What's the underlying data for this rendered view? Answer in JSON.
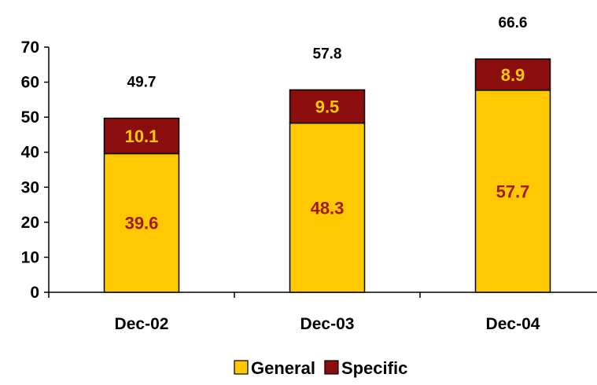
{
  "chart_data": {
    "type": "bar",
    "stacked": true,
    "categories": [
      "Dec-02",
      "Dec-03",
      "Dec-04"
    ],
    "series": [
      {
        "name": "General",
        "values": [
          39.6,
          48.3,
          57.7
        ],
        "color": "#FFC800",
        "label_color": "#A01C1C"
      },
      {
        "name": "Specific",
        "values": [
          10.1,
          9.5,
          8.9
        ],
        "color": "#8B0D0D",
        "label_color": "#FFC800"
      }
    ],
    "totals": [
      "49.7",
      "57.8",
      "66.6"
    ],
    "data_labels": [
      [
        "39.6",
        "48.3",
        "57.7"
      ],
      [
        "10.1",
        "9.5",
        "8.9"
      ]
    ],
    "yticks": [
      "0",
      "10",
      "20",
      "30",
      "40",
      "50",
      "60",
      "70"
    ],
    "ylim": [
      0,
      70
    ],
    "legend_position": "bottom",
    "grid": false
  }
}
